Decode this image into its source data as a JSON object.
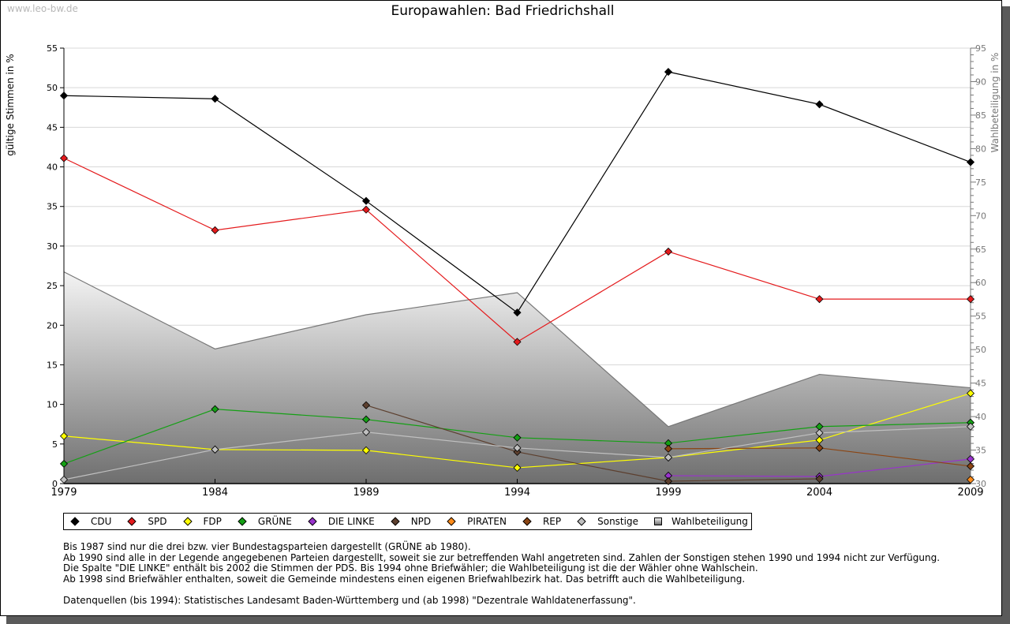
{
  "watermark": "www.leo-bw.de",
  "title": "Europawahlen: Bad Friedrichshall",
  "chart_data": {
    "type": "line",
    "title": "Europawahlen: Bad Friedrichshall",
    "xlabel": "",
    "ylabel": "gültige Stimmen in %",
    "y2label": "Wahlbeteiligung in %",
    "x": [
      1979,
      1984,
      1989,
      1994,
      1999,
      2004,
      2009
    ],
    "x_tick_labels": [
      "1979",
      "1984",
      "1989",
      "1994",
      "1999",
      "2004",
      "2009"
    ],
    "ylim": [
      0,
      55
    ],
    "y_ticks": [
      0,
      5,
      10,
      15,
      20,
      25,
      30,
      35,
      40,
      45,
      50,
      55
    ],
    "y2lim": [
      30,
      95
    ],
    "y2_ticks": [
      30,
      35,
      40,
      45,
      50,
      55,
      60,
      65,
      70,
      75,
      80,
      85,
      90,
      95
    ],
    "grid": true,
    "legend_position": "bottom",
    "series": [
      {
        "name": "CDU",
        "color": "#000000",
        "axis": "left",
        "values": [
          49.0,
          48.6,
          35.7,
          21.6,
          52.0,
          47.9,
          40.6
        ]
      },
      {
        "name": "SPD",
        "color": "#e41a1c",
        "axis": "left",
        "values": [
          41.1,
          32.0,
          34.6,
          17.9,
          29.3,
          23.3,
          23.3
        ]
      },
      {
        "name": "FDP",
        "color": "#ffff00",
        "axis": "left",
        "values": [
          6.0,
          4.3,
          4.2,
          2.0,
          3.3,
          5.5,
          11.4
        ]
      },
      {
        "name": "GRÜNE",
        "color": "#14a014",
        "axis": "left",
        "values": [
          2.5,
          9.4,
          8.1,
          5.8,
          5.1,
          7.2,
          7.7
        ]
      },
      {
        "name": "DIE LINKE",
        "color": "#9933cc",
        "axis": "left",
        "values": [
          null,
          null,
          null,
          null,
          1.0,
          0.9,
          3.1
        ]
      },
      {
        "name": "NPD",
        "color": "#5c3f2e",
        "axis": "left",
        "values": [
          null,
          null,
          9.9,
          4.0,
          0.3,
          0.6,
          null
        ]
      },
      {
        "name": "PIRATEN",
        "color": "#ff8c1a",
        "axis": "left",
        "values": [
          null,
          null,
          null,
          null,
          null,
          null,
          0.5
        ]
      },
      {
        "name": "REP",
        "color": "#8b4513",
        "axis": "left",
        "values": [
          null,
          null,
          null,
          null,
          4.4,
          4.5,
          2.2
        ]
      },
      {
        "name": "Sonstige",
        "color": "#c0c0c0",
        "axis": "left",
        "values": [
          0.5,
          4.3,
          6.5,
          4.5,
          3.3,
          6.4,
          7.2
        ]
      },
      {
        "name": "Wahlbeteiligung",
        "color": "#808080",
        "axis": "right",
        "kind": "area",
        "values": [
          61.6,
          50.1,
          55.2,
          58.5,
          38.5,
          46.3,
          44.3
        ]
      }
    ]
  },
  "legend": [
    {
      "label": "CDU",
      "color": "#000000",
      "shape": "diamond"
    },
    {
      "label": "SPD",
      "color": "#e41a1c",
      "shape": "diamond"
    },
    {
      "label": "FDP",
      "color": "#ffff00",
      "shape": "diamond"
    },
    {
      "label": "GRÜNE",
      "color": "#14a014",
      "shape": "diamond"
    },
    {
      "label": "DIE LINKE",
      "color": "#9933cc",
      "shape": "diamond"
    },
    {
      "label": "NPD",
      "color": "#5c3f2e",
      "shape": "diamond"
    },
    {
      "label": "PIRATEN",
      "color": "#ff8c1a",
      "shape": "diamond"
    },
    {
      "label": "REP",
      "color": "#8b4513",
      "shape": "diamond"
    },
    {
      "label": "Sonstige",
      "color": "#c0c0c0",
      "shape": "diamond"
    },
    {
      "label": "Wahlbeteiligung",
      "color": "#a0a0a0",
      "shape": "square"
    }
  ],
  "notes": [
    "Bis 1987 sind nur die drei bzw. vier Bundestagsparteien dargestellt (GRÜNE ab 1980).",
    "Ab 1990 sind alle in der Legende angegebenen Parteien dargestellt, soweit sie zur betreffenden Wahl angetreten sind. Zahlen der Sonstigen stehen 1990 und 1994 nicht zur Verfügung.",
    "Die Spalte \"DIE LINKE\" enthält bis 2002 die Stimmen der PDS. Bis 1994 ohne Briefwähler; die Wahlbeteiligung ist die der Wähler ohne Wahlschein.",
    "Ab 1998 sind Briefwähler enthalten, soweit die Gemeinde mindestens einen eigenen Briefwahlbezirk hat. Das betrifft auch die Wahlbeteiligung.",
    "",
    "Datenquellen (bis 1994): Statistisches Landesamt Baden-Württemberg und (ab 1998) \"Dezentrale Wahldatenerfassung\"."
  ]
}
